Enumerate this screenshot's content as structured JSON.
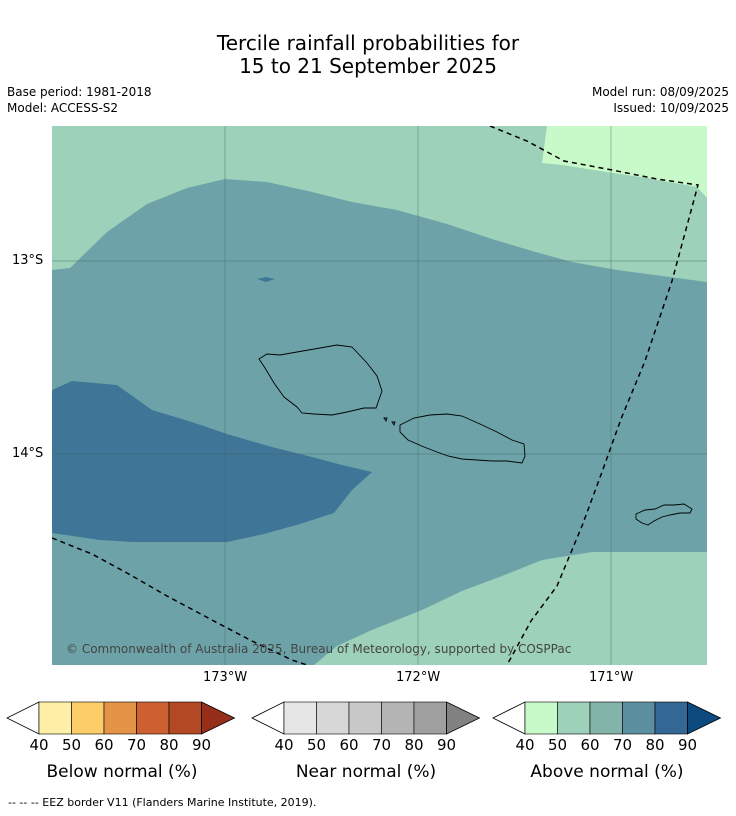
{
  "title": {
    "line1": "Tercile rainfall probabilities for",
    "line2": "15 to 21 September 2025"
  },
  "meta": {
    "base_period": "Base period: 1981-2018",
    "model": "Model: ACCESS-S2",
    "model_run": "Model run: 08/09/2025",
    "issued": "Issued: 10/09/2025"
  },
  "map": {
    "lat_labels": [
      "13°S",
      "14°S"
    ],
    "lon_labels": [
      "173°W",
      "172°W",
      "171°W"
    ],
    "copyright": "© Commonwealth of Australia 2025, Bureau of Meteorology, supported by COSPPac"
  },
  "colorbars": [
    {
      "title": "Below normal (%)",
      "ticks": [
        "40",
        "50",
        "60",
        "70",
        "80",
        "90"
      ],
      "colors": [
        "#fff0a8",
        "#fdcd6a",
        "#e39447",
        "#cd6030",
        "#b34825",
        "#952f1a"
      ]
    },
    {
      "title": "Near normal (%)",
      "ticks": [
        "40",
        "50",
        "60",
        "70",
        "80",
        "90"
      ],
      "colors": [
        "#e6e6e6",
        "#d7d7d7",
        "#c8c8c8",
        "#b4b4b4",
        "#9f9f9f",
        "#828282"
      ]
    },
    {
      "title": "Above normal (%)",
      "ticks": [
        "40",
        "50",
        "60",
        "70",
        "80",
        "90"
      ],
      "colors": [
        "#c8f9c8",
        "#9ed1b9",
        "#83b4a9",
        "#5c8fa0",
        "#336794",
        "#0d4a7d"
      ]
    }
  ],
  "footnote": "--  --  -- EEZ border V11 (Flanders Marine Institute, 2019)."
}
